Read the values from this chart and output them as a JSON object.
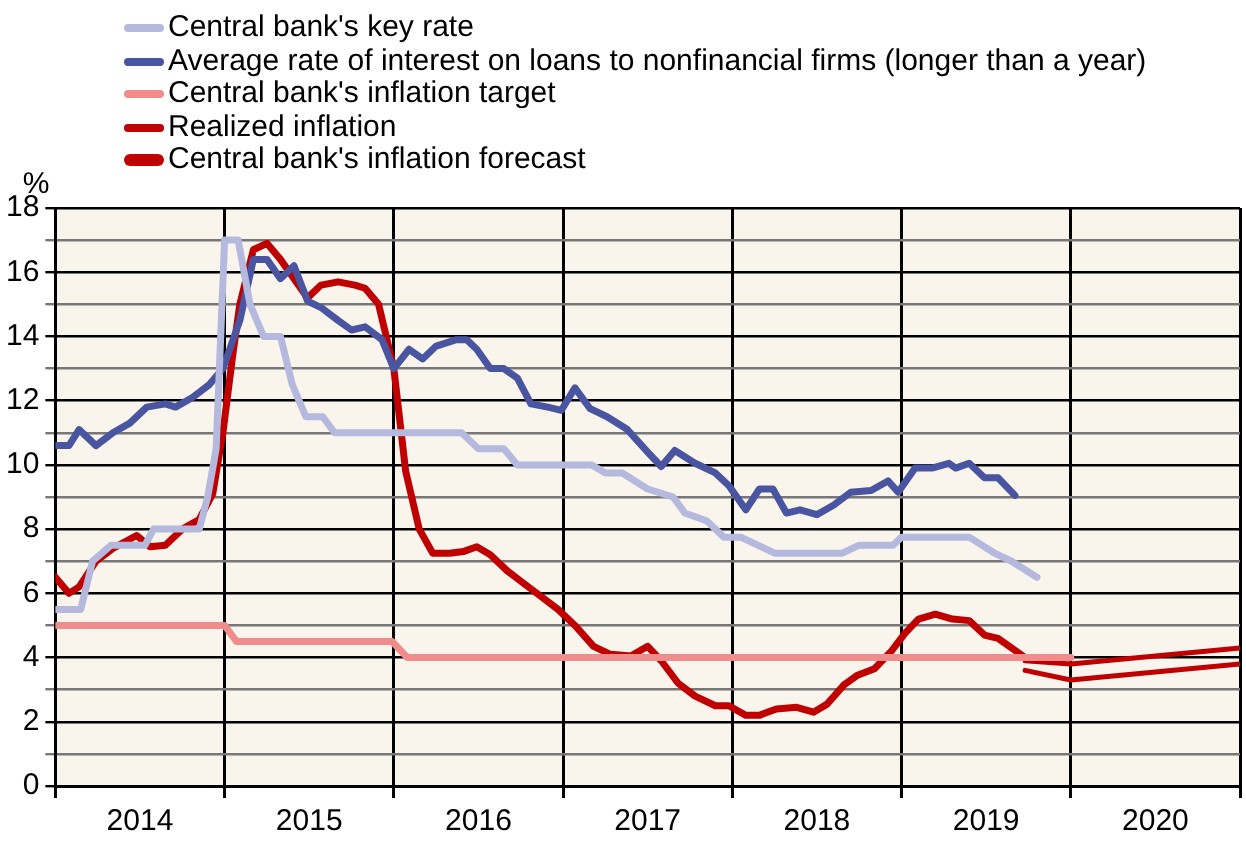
{
  "chart_data": {
    "type": "line",
    "ylabel": "%",
    "legend": "top left",
    "grid": true,
    "xlim": [
      2014,
      2021
    ],
    "xticks": [
      {
        "value": 2014,
        "label": null
      },
      {
        "value": 2014.5,
        "label": "2014"
      },
      {
        "value": 2015,
        "label": null
      },
      {
        "value": 2015.5,
        "label": "2015"
      },
      {
        "value": 2016,
        "label": null
      },
      {
        "value": 2016.5,
        "label": "2016"
      },
      {
        "value": 2017,
        "label": null
      },
      {
        "value": 2017.5,
        "label": "2017"
      },
      {
        "value": 2018,
        "label": null
      },
      {
        "value": 2018.5,
        "label": "2018"
      },
      {
        "value": 2019,
        "label": null
      },
      {
        "value": 2019.5,
        "label": "2019"
      },
      {
        "value": 2020,
        "label": null
      },
      {
        "value": 2020.5,
        "label": "2020"
      },
      {
        "value": 2021,
        "label": null
      }
    ],
    "ylim": [
      0,
      18
    ],
    "yticks": [
      0,
      {
        "value": 1,
        "label": null
      },
      2,
      {
        "value": 3,
        "label": null
      },
      4,
      {
        "value": 5,
        "label": null
      },
      6,
      {
        "value": 7,
        "label": null
      },
      8,
      {
        "value": 9,
        "label": null
      },
      10,
      {
        "value": 11,
        "label": null
      },
      12,
      {
        "value": 13,
        "label": null
      },
      14,
      {
        "value": 15,
        "label": null
      },
      16,
      {
        "value": 17,
        "label": null
      },
      18
    ],
    "series": [
      {
        "name": "Central bank's key rate",
        "color": "#b4b9dd",
        "x": [
          2014.0,
          2014.15,
          2014.22,
          2014.33,
          2014.53,
          2014.58,
          2014.85,
          2014.9,
          2014.95,
          2015.0,
          2015.08,
          2015.15,
          2015.23,
          2015.33,
          2015.4,
          2015.48,
          2015.58,
          2015.65,
          2016.0,
          2016.4,
          2016.5,
          2016.65,
          2016.73,
          2017.17,
          2017.25,
          2017.35,
          2017.5,
          2017.65,
          2017.72,
          2017.85,
          2017.95,
          2018.05,
          2018.25,
          2018.65,
          2018.75,
          2018.95,
          2019.0,
          2019.4,
          2019.55,
          2019.65,
          2019.8
        ],
        "values": [
          5.5,
          5.5,
          7.0,
          7.5,
          7.5,
          8.0,
          8.0,
          9.0,
          10.5,
          17.0,
          17.0,
          15.0,
          14.0,
          14.0,
          12.5,
          11.5,
          11.5,
          11.0,
          11.0,
          11.0,
          10.5,
          10.5,
          10.0,
          10.0,
          9.75,
          9.75,
          9.25,
          9.0,
          8.5,
          8.25,
          7.75,
          7.75,
          7.25,
          7.25,
          7.5,
          7.5,
          7.75,
          7.75,
          7.25,
          7.0,
          6.5
        ]
      },
      {
        "name": "Average rate of interest on loans to nonfinancial firms (longer than a year)",
        "color": "#4a55a2",
        "x": [
          2014.0,
          2014.08,
          2014.14,
          2014.24,
          2014.34,
          2014.44,
          2014.54,
          2014.65,
          2014.71,
          2014.81,
          2014.91,
          2014.99,
          2015.09,
          2015.17,
          2015.25,
          2015.33,
          2015.41,
          2015.49,
          2015.57,
          2015.67,
          2015.75,
          2015.83,
          2015.93,
          2016.0,
          2016.09,
          2016.17,
          2016.25,
          2016.37,
          2016.43,
          2016.49,
          2016.57,
          2016.65,
          2016.73,
          2016.81,
          2016.91,
          2016.99,
          2017.07,
          2017.16,
          2017.26,
          2017.38,
          2017.5,
          2017.58,
          2017.66,
          2017.78,
          2017.9,
          2017.98,
          2018.08,
          2018.16,
          2018.24,
          2018.32,
          2018.4,
          2018.5,
          2018.6,
          2018.7,
          2018.82,
          2018.92,
          2018.98,
          2019.08,
          2019.18,
          2019.28,
          2019.32,
          2019.4,
          2019.49,
          2019.57,
          2019.67
        ],
        "values": [
          10.6,
          10.6,
          11.1,
          10.6,
          11.0,
          11.3,
          11.8,
          11.9,
          11.8,
          12.1,
          12.5,
          13.0,
          14.5,
          16.4,
          16.4,
          15.8,
          16.2,
          15.1,
          14.9,
          14.5,
          14.2,
          14.3,
          13.9,
          13.0,
          13.6,
          13.3,
          13.7,
          13.9,
          13.9,
          13.6,
          13.0,
          13.0,
          12.7,
          11.9,
          11.8,
          11.7,
          12.4,
          11.75,
          11.5,
          11.1,
          10.4,
          9.95,
          10.45,
          10.05,
          9.75,
          9.35,
          8.6,
          9.25,
          9.25,
          8.5,
          8.6,
          8.45,
          8.75,
          9.15,
          9.2,
          9.5,
          9.15,
          9.9,
          9.9,
          10.05,
          9.9,
          10.05,
          9.6,
          9.6,
          9.05
        ]
      },
      {
        "name": "Central bank's inflation target",
        "color": "#f08c8c",
        "x": [
          2014.0,
          2015.0,
          2015.07,
          2015.99,
          2016.08,
          2020.0
        ],
        "values": [
          5.0,
          5.0,
          4.5,
          4.5,
          4.0,
          4.0
        ]
      },
      {
        "name": "Realized inflation",
        "color": "#c00000",
        "x": [
          2014.0,
          2014.08,
          2014.14,
          2014.24,
          2014.34,
          2014.48,
          2014.56,
          2014.65,
          2014.75,
          2014.85,
          2014.93,
          2014.99,
          2015.05,
          2015.09,
          2015.17,
          2015.25,
          2015.33,
          2015.41,
          2015.49,
          2015.57,
          2015.67,
          2015.77,
          2015.83,
          2015.91,
          2016.0,
          2016.07,
          2016.15,
          2016.23,
          2016.33,
          2016.41,
          2016.49,
          2016.57,
          2016.67,
          2016.77,
          2016.87,
          2016.97,
          2017.07,
          2017.18,
          2017.28,
          2017.4,
          2017.5,
          2017.58,
          2017.68,
          2017.78,
          2017.9,
          2017.98,
          2018.08,
          2018.16,
          2018.26,
          2018.38,
          2018.48,
          2018.56,
          2018.66,
          2018.74,
          2018.84,
          2018.94,
          2019.02,
          2019.1,
          2019.2,
          2019.3,
          2019.4,
          2019.49,
          2019.57,
          2019.65,
          2019.73
        ],
        "values": [
          6.5,
          6.0,
          6.2,
          7.0,
          7.4,
          7.8,
          7.45,
          7.5,
          8.0,
          8.3,
          9.1,
          11.0,
          13.5,
          15.0,
          16.7,
          16.9,
          16.4,
          15.8,
          15.2,
          15.6,
          15.7,
          15.6,
          15.5,
          15.0,
          13.0,
          9.8,
          8.0,
          7.25,
          7.25,
          7.3,
          7.45,
          7.2,
          6.7,
          6.3,
          5.9,
          5.5,
          5.0,
          4.35,
          4.1,
          4.05,
          4.35,
          3.9,
          3.2,
          2.8,
          2.5,
          2.5,
          2.2,
          2.2,
          2.4,
          2.45,
          2.3,
          2.55,
          3.15,
          3.45,
          3.65,
          4.2,
          4.75,
          5.2,
          5.35,
          5.2,
          5.15,
          4.7,
          4.6,
          4.3,
          4.0
        ]
      },
      {
        "name": "Central bank's inflation forecast",
        "color": "#c00000",
        "x": [
          2019.73,
          2020.0,
          2021.0
        ],
        "values": [
          3.9,
          3.8,
          4.3
        ]
      },
      {
        "color": "#c00000",
        "x": [
          2019.73,
          2020.0,
          2021.0
        ],
        "values": [
          3.6,
          3.3,
          3.8
        ]
      }
    ]
  }
}
